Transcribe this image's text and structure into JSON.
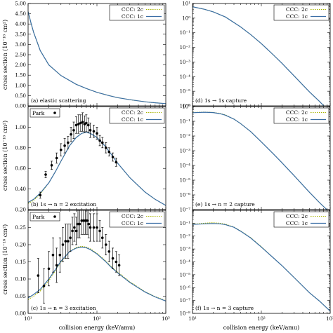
{
  "figure": {
    "xlabel_left": "collision energy (keV/amu)",
    "xlabel_right": "collision energy (keV/amu)",
    "ylabel_a": "cross section (10⁻¹⁶ cm²)",
    "ylabel_b": "cross section (10⁻¹⁶ cm²)",
    "ylabel_c": "cross section (10⁻¹⁶ cm²)"
  },
  "legend": {
    "series_2c": "CCC: 2c",
    "series_1c": "CCC: 1c",
    "experiment": "Park"
  },
  "colors": {
    "ccc_2c": "#a8b400",
    "ccc_1c": "#3a6ea5",
    "experiment": "#000000"
  },
  "chart_data": [
    {
      "id": "a",
      "type": "line",
      "label": "(a) elastic scattering",
      "x_scale": "log",
      "xlim": [
        10,
        1000
      ],
      "ylim": [
        0,
        5
      ],
      "y_ticks": [
        0.0,
        0.5,
        1.0,
        1.5,
        2.0,
        2.5,
        3.0,
        3.5,
        4.0,
        4.5,
        5.0
      ],
      "series": [
        {
          "name": "CCC: 2c",
          "x": [
            10,
            11,
            12,
            15,
            20,
            30,
            50,
            70,
            100,
            150,
            200,
            300,
            500,
            700,
            1000
          ],
          "y": [
            4.6,
            4.05,
            3.6,
            2.7,
            2.0,
            1.48,
            1.05,
            0.85,
            0.66,
            0.5,
            0.4,
            0.3,
            0.2,
            0.15,
            0.11
          ]
        },
        {
          "name": "CCC: 1c",
          "x": [
            10,
            11,
            12,
            15,
            20,
            30,
            50,
            70,
            100,
            150,
            200,
            300,
            500,
            700,
            1000
          ],
          "y": [
            4.6,
            4.05,
            3.6,
            2.7,
            2.0,
            1.48,
            1.05,
            0.85,
            0.66,
            0.5,
            0.4,
            0.3,
            0.2,
            0.15,
            0.11
          ]
        }
      ]
    },
    {
      "id": "b",
      "type": "line",
      "label": "(b) 1s → n = 2 excitation",
      "x_scale": "log",
      "xlim": [
        10,
        1000
      ],
      "ylim": [
        0.2,
        1.2
      ],
      "y_ticks": [
        0.2,
        0.4,
        0.6,
        0.8,
        1.0
      ],
      "series": [
        {
          "name": "CCC: 2c",
          "x": [
            10,
            12,
            15,
            20,
            25,
            30,
            40,
            50,
            60,
            70,
            80,
            100,
            130,
            160,
            200,
            300,
            500,
            700,
            1000
          ],
          "y": [
            0.26,
            0.29,
            0.35,
            0.46,
            0.57,
            0.67,
            0.82,
            0.9,
            0.94,
            0.95,
            0.94,
            0.9,
            0.82,
            0.74,
            0.65,
            0.51,
            0.37,
            0.3,
            0.24
          ]
        },
        {
          "name": "CCC: 1c",
          "x": [
            10,
            12,
            15,
            20,
            25,
            30,
            40,
            50,
            60,
            70,
            80,
            100,
            130,
            160,
            200,
            300,
            500,
            700,
            1000
          ],
          "y": [
            0.27,
            0.3,
            0.36,
            0.46,
            0.57,
            0.67,
            0.82,
            0.9,
            0.94,
            0.95,
            0.94,
            0.9,
            0.82,
            0.74,
            0.65,
            0.51,
            0.37,
            0.3,
            0.24
          ]
        },
        {
          "name": "Park",
          "x": [
            15,
            18,
            22,
            26,
            30,
            34,
            38,
            42,
            46,
            50,
            54,
            58,
            62,
            66,
            70,
            75,
            80,
            90,
            100,
            110,
            120,
            135,
            150,
            170,
            190
          ],
          "y": [
            0.34,
            0.54,
            0.63,
            0.7,
            0.78,
            0.82,
            0.85,
            0.93,
            0.97,
            1.02,
            1.03,
            1.04,
            1.05,
            1.03,
            1.04,
            1.02,
            0.97,
            0.96,
            0.94,
            0.87,
            0.85,
            0.8,
            0.76,
            0.71,
            0.66
          ],
          "err": [
            0.03,
            0.03,
            0.04,
            0.05,
            0.06,
            0.07,
            0.06,
            0.07,
            0.08,
            0.08,
            0.09,
            0.08,
            0.09,
            0.08,
            0.08,
            0.07,
            0.07,
            0.06,
            0.06,
            0.05,
            0.05,
            0.05,
            0.04,
            0.04,
            0.04
          ]
        }
      ]
    },
    {
      "id": "c",
      "type": "line",
      "label": "(c) 1s → n = 3 excitation",
      "x_scale": "log",
      "xlim": [
        10,
        1000
      ],
      "ylim": [
        0,
        0.3
      ],
      "y_ticks": [
        0.0,
        0.05,
        0.1,
        0.15,
        0.2,
        0.25
      ],
      "series": [
        {
          "name": "CCC: 2c",
          "x": [
            10,
            12,
            15,
            20,
            25,
            30,
            40,
            50,
            60,
            70,
            80,
            100,
            130,
            160,
            200,
            300,
            500,
            700,
            1000
          ],
          "y": [
            0.04,
            0.05,
            0.065,
            0.095,
            0.125,
            0.15,
            0.18,
            0.192,
            0.195,
            0.193,
            0.188,
            0.175,
            0.155,
            0.137,
            0.12,
            0.092,
            0.063,
            0.049,
            0.037
          ]
        },
        {
          "name": "CCC: 1c",
          "x": [
            10,
            12,
            15,
            20,
            25,
            30,
            40,
            50,
            60,
            70,
            80,
            100,
            130,
            160,
            200,
            300,
            500,
            700,
            1000
          ],
          "y": [
            0.045,
            0.055,
            0.07,
            0.1,
            0.128,
            0.152,
            0.18,
            0.19,
            0.193,
            0.191,
            0.186,
            0.173,
            0.153,
            0.135,
            0.118,
            0.09,
            0.062,
            0.048,
            0.036
          ]
        },
        {
          "name": "Park",
          "x": [
            14,
            17,
            20,
            23,
            26,
            29,
            32,
            35,
            38,
            41,
            44,
            47,
            50,
            53,
            56,
            60,
            64,
            68,
            72,
            76,
            80,
            90,
            100,
            110,
            120,
            135,
            150,
            170,
            190,
            210
          ],
          "y": [
            0.11,
            0.08,
            0.13,
            0.17,
            0.14,
            0.17,
            0.2,
            0.21,
            0.21,
            0.22,
            0.24,
            0.25,
            0.24,
            0.26,
            0.26,
            0.27,
            0.27,
            0.27,
            0.27,
            0.26,
            0.25,
            0.25,
            0.25,
            0.24,
            0.22,
            0.2,
            0.18,
            0.16,
            0.15,
            0.14
          ],
          "err": [
            0.05,
            0.05,
            0.05,
            0.05,
            0.05,
            0.05,
            0.05,
            0.05,
            0.05,
            0.04,
            0.04,
            0.04,
            0.04,
            0.04,
            0.04,
            0.04,
            0.04,
            0.04,
            0.04,
            0.04,
            0.04,
            0.04,
            0.04,
            0.03,
            0.03,
            0.03,
            0.03,
            0.03,
            0.03,
            0.03
          ]
        }
      ]
    },
    {
      "id": "d",
      "type": "line",
      "label": "(d) 1s → 1s capture",
      "x_scale": "log",
      "y_scale": "log",
      "xlim": [
        10,
        1000
      ],
      "ylim": [
        1e-06,
        10
      ],
      "y_ticks": [
        10,
        1,
        0.1,
        0.01,
        0.001,
        0.0001,
        1e-05,
        1e-06
      ],
      "y_tick_labels": [
        "10¹",
        "10⁰",
        "10⁻¹",
        "10⁻²",
        "10⁻³",
        "10⁻⁴",
        "10⁻⁵",
        "10⁻⁶"
      ],
      "series": [
        {
          "name": "CCC: 2c",
          "x": [
            10,
            15,
            20,
            30,
            50,
            70,
            100,
            150,
            200,
            300,
            500,
            700,
            1000
          ],
          "y": [
            6.0,
            4.0,
            2.7,
            1.2,
            0.25,
            0.075,
            0.018,
            0.003,
            0.0008,
            0.00011,
            9e-06,
            2e-06,
            3.5e-07
          ]
        },
        {
          "name": "CCC: 1c",
          "x": [
            10,
            15,
            20,
            30,
            50,
            70,
            100,
            150,
            200,
            300,
            500,
            700,
            1000
          ],
          "y": [
            6.0,
            4.0,
            2.7,
            1.2,
            0.25,
            0.075,
            0.018,
            0.003,
            0.0008,
            0.00011,
            9e-06,
            2e-06,
            3.5e-07
          ]
        }
      ]
    },
    {
      "id": "e",
      "type": "line",
      "label": "(e) 1s → n = 2 capture",
      "x_scale": "log",
      "y_scale": "log",
      "xlim": [
        10,
        1000
      ],
      "ylim": [
        1e-07,
        1
      ],
      "y_ticks": [
        1,
        0.1,
        0.01,
        0.001,
        0.0001,
        1e-05,
        1e-06,
        1e-07
      ],
      "y_tick_labels": [
        "10⁰",
        "10⁻¹",
        "10⁻²",
        "10⁻³",
        "10⁻⁴",
        "10⁻⁵",
        "10⁻⁶",
        "10⁻⁷"
      ],
      "series": [
        {
          "name": "CCC: 2c",
          "x": [
            10,
            15,
            20,
            25,
            30,
            40,
            50,
            70,
            100,
            150,
            200,
            300,
            500,
            700,
            1000
          ],
          "y": [
            0.4,
            0.42,
            0.4,
            0.34,
            0.27,
            0.14,
            0.07,
            0.02,
            0.004,
            0.0006,
            0.00015,
            2e-05,
            1.5e-06,
            3e-07,
            6e-08
          ]
        },
        {
          "name": "CCC: 1c",
          "x": [
            10,
            15,
            20,
            25,
            30,
            40,
            50,
            70,
            100,
            150,
            200,
            300,
            500,
            700,
            1000
          ],
          "y": [
            0.38,
            0.41,
            0.39,
            0.33,
            0.26,
            0.14,
            0.07,
            0.02,
            0.004,
            0.0006,
            0.00015,
            2e-05,
            1.5e-06,
            3e-07,
            6e-08
          ]
        }
      ]
    },
    {
      "id": "f",
      "type": "line",
      "label": "(f) 1s → n = 3 capture",
      "x_scale": "log",
      "y_scale": "log",
      "xlim": [
        10,
        1000
      ],
      "ylim": [
        1e-08,
        1
      ],
      "y_ticks": [
        0.1,
        0.01,
        0.001,
        0.0001,
        1e-05,
        1e-06,
        1e-07,
        1e-08
      ],
      "y_tick_labels": [
        "10⁻¹",
        "10⁻²",
        "10⁻³",
        "10⁻⁴",
        "10⁻⁵",
        "10⁻⁶",
        "10⁻⁷",
        "10⁻⁸"
      ],
      "series": [
        {
          "name": "CCC: 2c",
          "x": [
            10,
            15,
            20,
            25,
            30,
            40,
            50,
            70,
            100,
            150,
            200,
            300,
            500,
            700,
            1000
          ],
          "y": [
            0.085,
            0.1,
            0.11,
            0.1,
            0.085,
            0.05,
            0.025,
            0.0075,
            0.0015,
            0.0002,
            5e-05,
            6e-06,
            4e-07,
            9e-08,
            1.5e-08
          ]
        },
        {
          "name": "CCC: 1c",
          "x": [
            10,
            15,
            20,
            25,
            30,
            40,
            50,
            70,
            100,
            150,
            200,
            300,
            500,
            700,
            1000
          ],
          "y": [
            0.08,
            0.09,
            0.095,
            0.09,
            0.078,
            0.048,
            0.024,
            0.0072,
            0.0014,
            0.0002,
            5e-05,
            6e-06,
            4e-07,
            9e-08,
            1.5e-08
          ]
        }
      ]
    }
  ]
}
